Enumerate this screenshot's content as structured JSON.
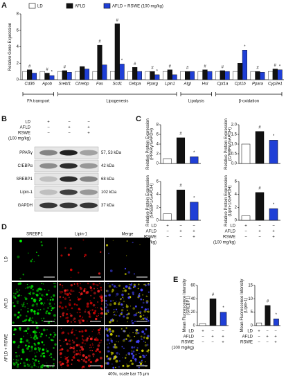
{
  "panel_labels": [
    "A",
    "B",
    "C",
    "D",
    "E"
  ],
  "chart_data": [
    {
      "type": "bar",
      "ylabel": "Relative Gene Expression",
      "ylim": [
        0,
        8
      ],
      "yticks": [
        0,
        2,
        4,
        6,
        8
      ],
      "categories": [
        "Cd36",
        "Apob",
        "Srebf1",
        "Chrebp",
        "Fas",
        "Scd1",
        "Cebpa",
        "Pparg",
        "Lpin1",
        "Atgl",
        "Hsl",
        "Cpt1a",
        "Cpt1b",
        "Ppara",
        "Cyp2e1"
      ],
      "groups": [
        "FA transport",
        "Lipogenesis",
        "Lipolysis",
        "β-oxidation"
      ],
      "series": [
        {
          "name": "LD",
          "color": "#ffffff",
          "values": [
            1,
            1,
            1,
            1,
            1,
            1,
            1,
            1,
            1,
            1,
            1,
            1,
            1,
            1,
            1
          ],
          "annotations": [
            null,
            null,
            null,
            null,
            null,
            null,
            null,
            null,
            null,
            null,
            null,
            null,
            null,
            null,
            null
          ]
        },
        {
          "name": "AFLD",
          "color": "#111111",
          "values": [
            1.2,
            0.8,
            1.1,
            1.6,
            4.2,
            6.8,
            1.5,
            1.0,
            1.2,
            1.0,
            1.2,
            1.1,
            2.0,
            1.0,
            1.3
          ],
          "annotations": [
            "#",
            "#",
            "#",
            null,
            "#",
            "#",
            "#",
            "#",
            "#",
            "#",
            "#",
            "#",
            null,
            "#",
            "#"
          ]
        },
        {
          "name": "AFLD + RSWE (100 mg/kg)",
          "color": "#1f3fd6",
          "values": [
            0.8,
            0.5,
            0.9,
            1.3,
            1.8,
            1.9,
            1.0,
            0.6,
            0.6,
            1.0,
            1.0,
            1.0,
            3.6,
            0.9,
            1.2
          ],
          "annotations": [
            null,
            "*",
            null,
            null,
            null,
            "*",
            null,
            "*",
            null,
            null,
            null,
            null,
            "*",
            null,
            "*"
          ]
        }
      ]
    },
    {
      "type": "bar",
      "ylabel": [
        "Relative Protein Expression",
        "(PPARγ/GAPDH)"
      ],
      "ylim": [
        0,
        8
      ],
      "yticks": [
        0,
        2,
        4,
        6,
        8
      ],
      "categories": [
        null,
        null,
        null
      ],
      "values": [
        1,
        5.3,
        1.4
      ],
      "colors": [
        "#ffffff",
        "#111111",
        "#1f3fd6"
      ],
      "annotations": [
        null,
        "#",
        "*"
      ]
    },
    {
      "type": "bar",
      "ylabel": [
        "Relative Protein Expression",
        "(C/EBPα/GAPDH)"
      ],
      "ylim": [
        0,
        2
      ],
      "yticks": [
        {
          "value": 0,
          "label": "0.0"
        },
        {
          "value": 0.5,
          "label": "0.5"
        },
        {
          "value": 1,
          "label": "1.0"
        },
        {
          "value": 1.5,
          "label": "1.5"
        },
        {
          "value": 2,
          "label": "2.0"
        }
      ],
      "categories": [
        null,
        null,
        null
      ],
      "values": [
        1,
        1.65,
        1.2
      ],
      "colors": [
        "#ffffff",
        "#111111",
        "#1f3fd6"
      ],
      "annotations": [
        null,
        "#",
        "*"
      ]
    },
    {
      "type": "bar",
      "ylabel": [
        "Relative Protein Expression",
        "(SREBP1/GAPDH)"
      ],
      "ylim": [
        0,
        6
      ],
      "yticks": [
        0,
        2,
        4,
        6
      ],
      "categories": [
        null,
        null,
        null
      ],
      "values": [
        1,
        4.7,
        2.8
      ],
      "colors": [
        "#ffffff",
        "#111111",
        "#1f3fd6"
      ],
      "annotations": [
        null,
        "#",
        "*"
      ]
    },
    {
      "type": "bar",
      "ylabel": [
        "Relative Protein Expression",
        "(Lipin-1/GAPDH)"
      ],
      "ylim": [
        0,
        6
      ],
      "yticks": [
        0,
        2,
        4,
        6
      ],
      "categories": [
        null,
        null,
        null
      ],
      "values": [
        0.7,
        4.3,
        1.8
      ],
      "colors": [
        "#ffffff",
        "#111111",
        "#1f3fd6"
      ],
      "annotations": [
        null,
        "#",
        "*"
      ]
    },
    {
      "type": "bar",
      "ylabel": [
        "Mean Fluorescence Intensity",
        "(SREBP1)"
      ],
      "ylim": [
        0,
        60
      ],
      "yticks": [
        0,
        20,
        40,
        60
      ],
      "categories": [
        null,
        null,
        null
      ],
      "values": [
        3,
        40,
        20
      ],
      "colors": [
        "#ffffff",
        "#111111",
        "#1f3fd6"
      ],
      "annotations": [
        null,
        "#",
        "*"
      ]
    },
    {
      "type": "bar",
      "ylabel": [
        "Mean Fluorescence Intensity",
        "(Lipin-1)"
      ],
      "ylim": [
        0,
        15
      ],
      "yticks": [
        0,
        5,
        10,
        15
      ],
      "categories": [
        null,
        null,
        null
      ],
      "values": [
        1,
        7.5,
        2.5
      ],
      "colors": [
        "#ffffff",
        "#111111",
        "#1f3fd6"
      ],
      "annotations": [
        null,
        "#",
        "*"
      ]
    }
  ],
  "conditions": [
    {
      "name": "LD",
      "signs": [
        "+",
        "−",
        "−"
      ]
    },
    {
      "name": "AFLD",
      "signs": [
        "−",
        "+",
        "+"
      ]
    },
    {
      "name": "RSWE",
      "signs": [
        "−",
        "−",
        "+"
      ]
    }
  ],
  "dose": "(100 mg/kg)",
  "blot": [
    {
      "protein": "PPARγ",
      "size": "57, 53 kDa"
    },
    {
      "protein": "C/EBPα",
      "size": "42 kDa"
    },
    {
      "protein": "SREBP1",
      "size": "68 kDa"
    },
    {
      "protein": "Lipin-1",
      "size": "102 kDa"
    },
    {
      "protein": "GAPDH",
      "size": "37 kDa"
    }
  ],
  "microscopy": {
    "columns": [
      "SREBP1",
      "Lipin-1",
      "Merge"
    ],
    "rows": [
      "LD",
      "AFLD",
      "AFLD + RSWE"
    ],
    "caption": "400x, scale bar 75 μm"
  }
}
